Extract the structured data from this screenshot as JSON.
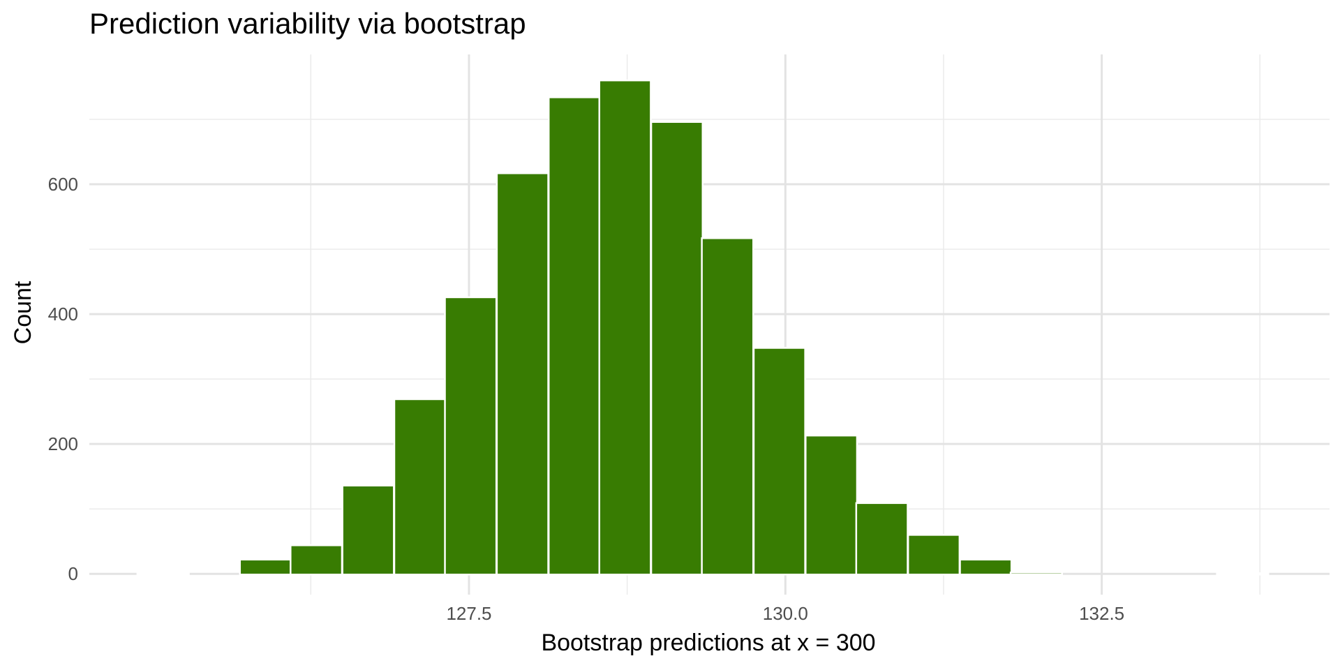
{
  "chart_data": {
    "type": "bar",
    "title": "Prediction variability via bootstrap",
    "xlabel": "Bootstrap predictions at x = 300",
    "ylabel": "Count",
    "bar_color": "#387C02",
    "bar_outline": "#ffffff",
    "grid": true,
    "bin_width": 0.40625,
    "bins": [
      {
        "x_start": 124.88,
        "count": 0
      },
      {
        "x_start": 125.69,
        "count": 22
      },
      {
        "x_start": 126.09,
        "count": 44
      },
      {
        "x_start": 126.5,
        "count": 136
      },
      {
        "x_start": 126.91,
        "count": 269
      },
      {
        "x_start": 127.31,
        "count": 426
      },
      {
        "x_start": 127.72,
        "count": 617
      },
      {
        "x_start": 128.13,
        "count": 734
      },
      {
        "x_start": 128.53,
        "count": 760
      },
      {
        "x_start": 128.94,
        "count": 696
      },
      {
        "x_start": 129.34,
        "count": 517
      },
      {
        "x_start": 129.75,
        "count": 348
      },
      {
        "x_start": 130.16,
        "count": 213
      },
      {
        "x_start": 130.56,
        "count": 109
      },
      {
        "x_start": 130.97,
        "count": 60
      },
      {
        "x_start": 131.38,
        "count": 22
      },
      {
        "x_start": 131.78,
        "count": 2
      },
      {
        "x_start": 133.41,
        "count": 0
      }
    ],
    "xlim": [
      124.5,
      134.3
    ],
    "ylim": [
      -32,
      800
    ],
    "x_major_ticks": [
      127.5,
      130.0,
      132.5
    ],
    "x_minor_ticks": [
      126.25,
      128.75,
      131.25,
      133.75
    ],
    "y_major_ticks": [
      0,
      200,
      400,
      600
    ],
    "y_minor_ticks": [
      100,
      300,
      500,
      700
    ]
  }
}
